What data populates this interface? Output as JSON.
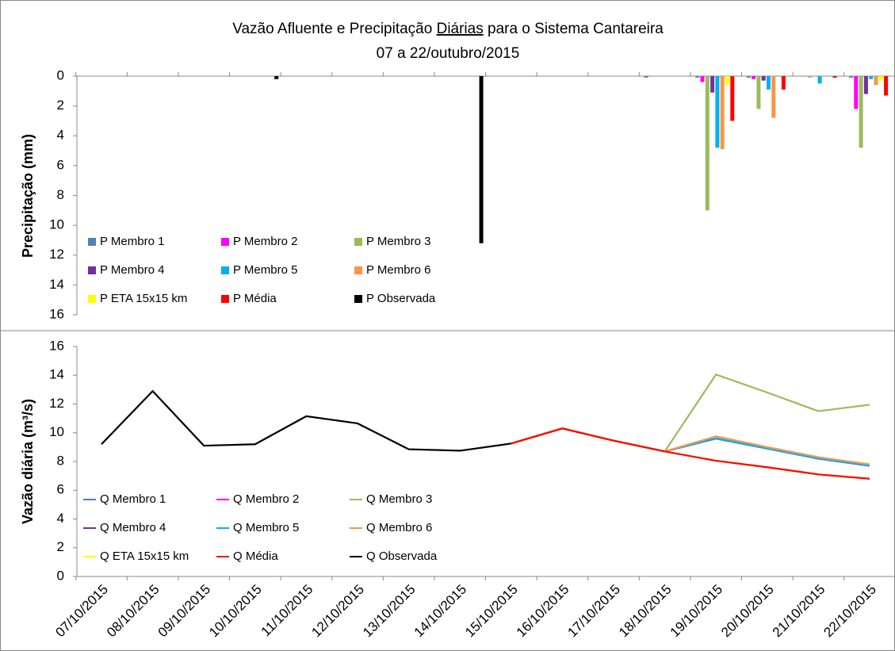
{
  "chart_data": [
    {
      "type": "bar",
      "title": [
        "Vazão Afluente e Precipitação ",
        "Diárias",
        " para o Sistema Cantareira"
      ],
      "subtitle": "07 a 22/outubro/2015",
      "ylabel": "Precipitação (mm)",
      "ylim": [
        0,
        16
      ],
      "yticks": [
        0,
        2,
        4,
        6,
        8,
        10,
        12,
        14,
        16
      ],
      "inverted": true,
      "legend": "lower-left",
      "series": [
        {
          "name": "P Membro 1",
          "color": "#4f81bd",
          "values": [
            0,
            0,
            0,
            0,
            0,
            0,
            0,
            0,
            0,
            0,
            0,
            0.1,
            0.1,
            0.1,
            0,
            0.1
          ]
        },
        {
          "name": "P Membro 2",
          "color": "#ff00ff",
          "values": [
            0,
            0,
            0,
            0,
            0,
            0,
            0,
            0,
            0,
            0,
            0,
            0,
            0.4,
            0.2,
            0,
            2.2
          ]
        },
        {
          "name": "P Membro 3",
          "color": "#9bbb59",
          "values": [
            0,
            0,
            0,
            0,
            0,
            0,
            0,
            0,
            0,
            0,
            0,
            0,
            9.0,
            2.2,
            0.1,
            4.8
          ]
        },
        {
          "name": "P Membro 4",
          "color": "#7030a0",
          "values": [
            0,
            0,
            0,
            0,
            0,
            0,
            0,
            0,
            0,
            0,
            0,
            0,
            1.1,
            0.3,
            0,
            1.2
          ]
        },
        {
          "name": "P Membro 5",
          "color": "#00b0f0",
          "values": [
            0,
            0,
            0,
            0,
            0,
            0,
            0,
            0,
            0,
            0,
            0,
            0,
            4.8,
            0.9,
            0.5,
            0.2
          ]
        },
        {
          "name": "P Membro 6",
          "color": "#f79646",
          "values": [
            0,
            0,
            0,
            0,
            0,
            0,
            0,
            0,
            0,
            0,
            0,
            0,
            4.9,
            2.8,
            0,
            0.6
          ]
        },
        {
          "name": "P ETA 15x15 km",
          "color": "#ffff00",
          "values": [
            0,
            0,
            0,
            0,
            0,
            0,
            0,
            0,
            0,
            0,
            0,
            0,
            0.6,
            0,
            0,
            0.3
          ]
        },
        {
          "name": "P Média",
          "color": "#ff0000",
          "values": [
            0,
            0,
            0,
            0,
            0,
            0,
            0,
            0,
            0,
            0,
            0,
            0,
            3.0,
            0.9,
            0.1,
            1.3
          ]
        },
        {
          "name": "P Observada",
          "color": "#000000",
          "values": [
            0,
            0,
            0,
            0.2,
            0,
            0,
            0,
            11.2,
            0,
            0,
            0,
            0,
            0,
            0,
            0,
            0
          ]
        }
      ]
    },
    {
      "type": "line",
      "ylabel": "Vazão diária (m³/s)",
      "categories": [
        "07/10/2015",
        "08/10/2015",
        "09/10/2015",
        "10/10/2015",
        "11/10/2015",
        "12/10/2015",
        "13/10/2015",
        "14/10/2015",
        "15/10/2015",
        "16/10/2015",
        "17/10/2015",
        "18/10/2015",
        "19/10/2015",
        "20/10/2015",
        "21/10/2015",
        "22/10/2015"
      ],
      "ylim": [
        0,
        16
      ],
      "yticks": [
        0,
        2,
        4,
        6,
        8,
        10,
        12,
        14,
        16
      ],
      "legend": "lower-left",
      "series": [
        {
          "name": "Q Membro 1",
          "color": "#4f81bd",
          "values": [
            null,
            null,
            null,
            null,
            null,
            null,
            null,
            null,
            9.25,
            10.3,
            9.45,
            8.7,
            9.6,
            8.9,
            8.2,
            7.7
          ]
        },
        {
          "name": "Q Membro 2",
          "color": "#ff00ff",
          "values": [
            null,
            null,
            null,
            null,
            null,
            null,
            null,
            null,
            9.25,
            10.3,
            9.45,
            8.7,
            9.6,
            8.9,
            8.2,
            7.7
          ]
        },
        {
          "name": "Q Membro 3",
          "color": "#9bbb59",
          "values": [
            null,
            null,
            null,
            null,
            null,
            null,
            null,
            null,
            9.25,
            10.3,
            9.45,
            8.7,
            14.05,
            12.8,
            11.5,
            11.95
          ]
        },
        {
          "name": "Q Membro 4",
          "color": "#7030a0",
          "values": [
            null,
            null,
            null,
            null,
            null,
            null,
            null,
            null,
            9.25,
            10.3,
            9.45,
            8.7,
            9.6,
            8.9,
            8.2,
            7.7
          ]
        },
        {
          "name": "Q Membro 5",
          "color": "#00b0f0",
          "values": [
            null,
            null,
            null,
            null,
            null,
            null,
            null,
            null,
            9.25,
            10.3,
            9.45,
            8.7,
            9.6,
            8.9,
            8.2,
            7.7
          ]
        },
        {
          "name": "Q Membro 6",
          "color": "#f79646",
          "values": [
            null,
            null,
            null,
            null,
            null,
            null,
            null,
            null,
            9.25,
            10.3,
            9.45,
            8.7,
            9.75,
            9.0,
            8.3,
            7.8
          ]
        },
        {
          "name": "Q ETA 15x15 km",
          "color": "#ffff00",
          "values": [
            null,
            null,
            null,
            null,
            null,
            null,
            null,
            null,
            9.25,
            10.3,
            9.45,
            8.7,
            8.05,
            7.6,
            7.1,
            6.8
          ]
        },
        {
          "name": "Q Média",
          "color": "#ff0000",
          "values": [
            null,
            null,
            null,
            null,
            null,
            null,
            null,
            null,
            9.25,
            10.3,
            9.45,
            8.7,
            8.05,
            7.6,
            7.1,
            6.8
          ]
        },
        {
          "name": "Q Observada",
          "color": "#000000",
          "values": [
            9.2,
            12.9,
            9.1,
            9.2,
            11.15,
            10.65,
            8.85,
            8.75,
            9.25,
            null,
            null,
            null,
            null,
            null,
            null,
            null
          ]
        }
      ]
    }
  ]
}
